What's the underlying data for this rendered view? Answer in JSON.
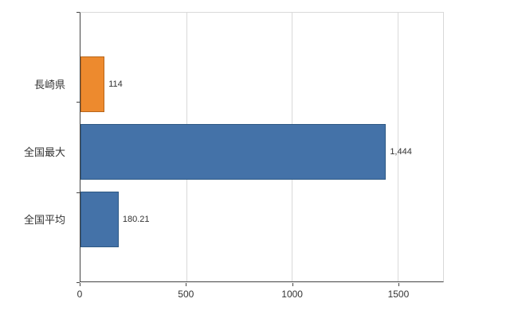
{
  "chart_data": {
    "type": "bar",
    "orientation": "horizontal",
    "title": "",
    "xlabel": "",
    "ylabel": "",
    "categories": [
      "長崎県",
      "全国最大",
      "全国平均"
    ],
    "values": [
      114,
      1444,
      180.21
    ],
    "value_labels": [
      "114",
      "1,444",
      "180.21"
    ],
    "bar_colors": [
      "#ed8a2e",
      "#4472a8",
      "#4472a8"
    ],
    "bar_border_colors": [
      "#b8661b",
      "#2e5984",
      "#2e5984"
    ],
    "xlim": [
      0,
      1714
    ],
    "xticks": [
      0,
      500,
      1000,
      1500
    ],
    "xtick_labels": [
      "0",
      "500",
      "1000",
      "1500"
    ],
    "grid": true,
    "legend": false,
    "background": "#ffffff",
    "grid_color": "#d9d9d9",
    "axis_color": "#444444",
    "text_color": "#333333"
  }
}
